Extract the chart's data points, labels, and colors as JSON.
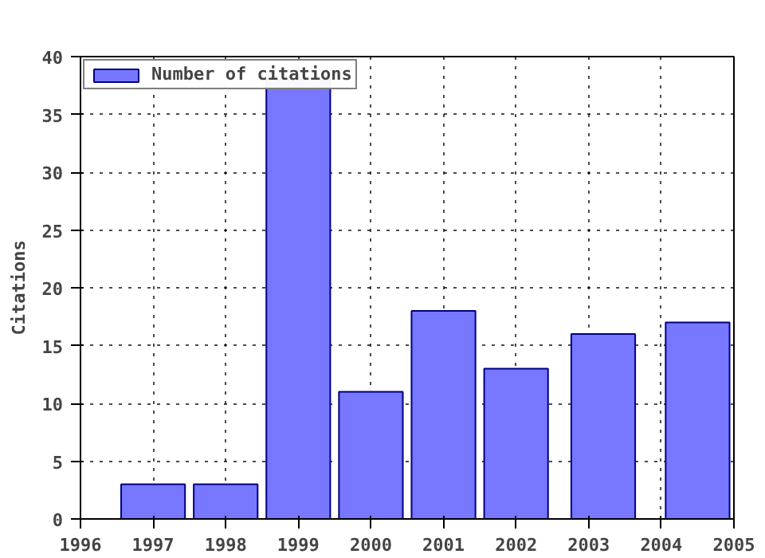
{
  "chart_data": {
    "type": "bar",
    "ylabel": "Citations",
    "x": [
      1997,
      1998,
      1999,
      2000,
      2001,
      2002,
      2003.2,
      2004.5
    ],
    "series": [
      {
        "name": "Number of citations",
        "color": "#7777ff",
        "values": [
          3,
          3,
          38,
          11,
          18,
          13,
          16,
          17
        ]
      }
    ],
    "xlim": [
      1996,
      2005
    ],
    "xticks": [
      1996,
      1997,
      1998,
      1999,
      2000,
      2001,
      2002,
      2003,
      2004,
      2005
    ],
    "ylim": [
      0,
      40
    ],
    "yticks": [
      0,
      5,
      10,
      15,
      20,
      25,
      30,
      35,
      40
    ],
    "grid": true,
    "legend": "top left",
    "line_style": "dotted"
  }
}
